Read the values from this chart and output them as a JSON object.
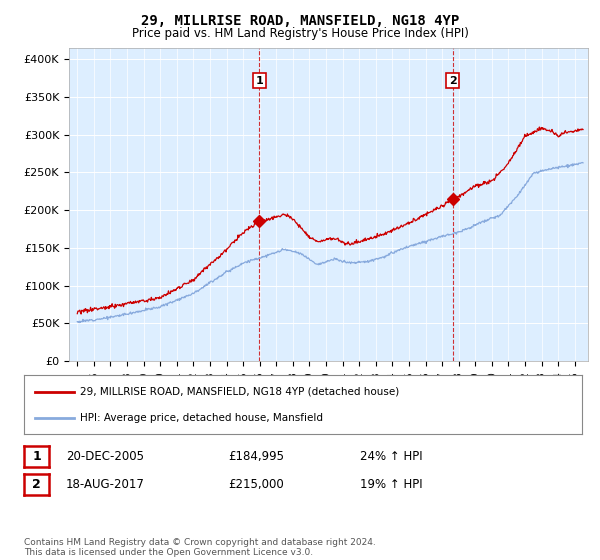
{
  "title": "29, MILLRISE ROAD, MANSFIELD, NG18 4YP",
  "subtitle": "Price paid vs. HM Land Registry's House Price Index (HPI)",
  "ylabel_ticks": [
    "£0",
    "£50K",
    "£100K",
    "£150K",
    "£200K",
    "£250K",
    "£300K",
    "£350K",
    "£400K"
  ],
  "ytick_values": [
    0,
    50000,
    100000,
    150000,
    200000,
    250000,
    300000,
    350000,
    400000
  ],
  "ylim": [
    0,
    415000
  ],
  "xlim_start": 1994.5,
  "xlim_end": 2025.8,
  "line1_color": "#cc0000",
  "line2_color": "#88aadd",
  "transaction1_x": 2005.97,
  "transaction1_y": 184995,
  "transaction2_x": 2017.63,
  "transaction2_y": 215000,
  "legend1_text": "29, MILLRISE ROAD, MANSFIELD, NG18 4YP (detached house)",
  "legend2_text": "HPI: Average price, detached house, Mansfield",
  "table_row1": [
    "1",
    "20-DEC-2005",
    "£184,995",
    "24% ↑ HPI"
  ],
  "table_row2": [
    "2",
    "18-AUG-2017",
    "£215,000",
    "19% ↑ HPI"
  ],
  "footer": "Contains HM Land Registry data © Crown copyright and database right 2024.\nThis data is licensed under the Open Government Licence v3.0.",
  "plot_bg_color": "#ddeeff",
  "fig_width": 6.0,
  "fig_height": 5.6
}
